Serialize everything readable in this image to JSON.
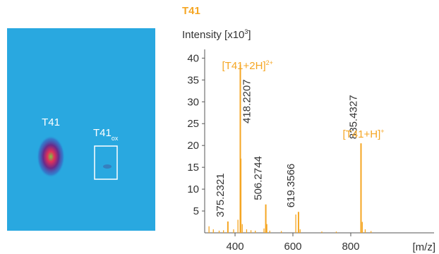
{
  "image_panel": {
    "spot_label": "T41",
    "box_label": "T41",
    "box_label_subscript": "ox"
  },
  "chart_data": {
    "type": "spectrum",
    "title": "T41",
    "y_label": {
      "text": "Intensity [x10",
      "superscript": "3",
      "close": "]"
    },
    "x_label": "[m/z]",
    "color": "#f5a623",
    "peaks": {
      "x": [
        375.2321,
        418.2207,
        506.2744,
        619.3566,
        835.4327
      ],
      "values": [
        2.6,
        38.5,
        6.5,
        4.8,
        20.5
      ]
    },
    "minor_peaks": {
      "x": [
        310,
        325,
        345,
        360,
        395,
        410,
        420.5,
        425,
        440,
        455,
        470,
        500,
        510,
        520,
        560,
        610,
        625,
        700,
        750,
        840,
        850,
        870
      ],
      "values": [
        1.5,
        0.8,
        0.5,
        0.6,
        0.8,
        3,
        17,
        2,
        0.8,
        0.6,
        0.5,
        1,
        2,
        0.5,
        0.4,
        4.2,
        0.8,
        0.3,
        0.3,
        2.5,
        0.8,
        0.4
      ]
    },
    "annotations": [
      {
        "text": "[T41+2H]",
        "superscript": "2+",
        "x": 418.2207
      },
      {
        "text": "[T41+H]",
        "superscript": "+",
        "x": 835.4327
      }
    ],
    "xlim": [
      295,
      1088
    ],
    "xticks": [
      400,
      600,
      800
    ],
    "ylim": [
      0,
      42
    ],
    "yticks": [
      5,
      10,
      15,
      20,
      25,
      30,
      35,
      40
    ]
  }
}
